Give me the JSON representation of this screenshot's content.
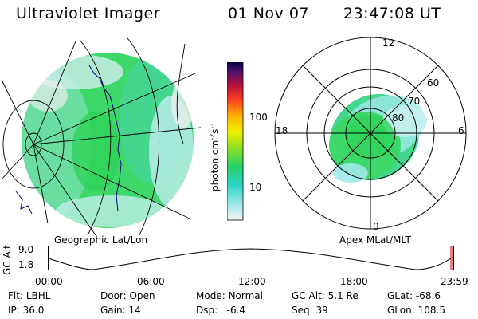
{
  "header": {
    "instrument": "Ultraviolet Imager",
    "date": "01 Nov 07",
    "time": "23:47:08 UT"
  },
  "colorbar": {
    "label": "photon cm",
    "label_sup1": "-2",
    "label_mid": "s",
    "label_sup2": "-1",
    "ticks": [
      "100",
      "10"
    ]
  },
  "geo_panel": {
    "caption": "Geographic Lat/Lon"
  },
  "polar_panel": {
    "caption": "Apex MLat/MLT",
    "mlt_labels": [
      "12",
      "18",
      "6",
      "0"
    ],
    "mlat_labels": [
      "60",
      "70",
      "80"
    ]
  },
  "altitude_plot": {
    "ylabel": "GC Alt",
    "yticks": [
      "9.0",
      "1.8"
    ],
    "xticks": [
      "00:00",
      "06:00",
      "12:00",
      "18:00",
      "23:59"
    ]
  },
  "status": {
    "flt_label": "Flt:",
    "flt_value": "LBHL",
    "ip_label": "IP:",
    "ip_value": "36.0",
    "door_label": "Door:",
    "door_value": "Open",
    "gain_label": "Gain:",
    "gain_value": "14",
    "mode_label": "Mode:",
    "mode_value": "Normal",
    "dsp_label": "Dsp:",
    "dsp_value": "-6.4",
    "gcalt_label": "GC Alt:",
    "gcalt_value": "5.1 Re",
    "seq_label": "Seq:",
    "seq_value": "39",
    "glat_label": "GLat:",
    "glat_value": "-68.6",
    "glon_label": "GLon:",
    "glon_value": "108.5"
  },
  "colors": {
    "aurora_green": "#3cd86a",
    "aurora_teal": "#3fd6c4",
    "aurora_cyan": "#9fe9ea",
    "aurora_white": "#e8eeee",
    "coast": "#000080"
  }
}
